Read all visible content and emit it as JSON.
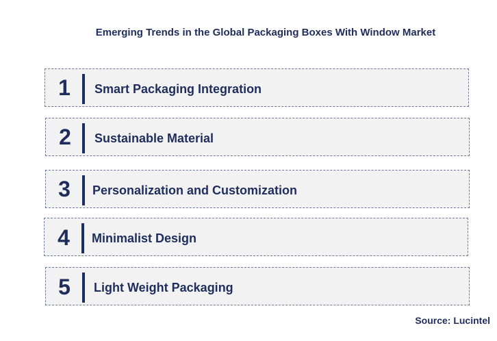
{
  "title": "Emerging Trends in the Global Packaging Boxes With Window Market",
  "items": [
    {
      "number": "1",
      "label": "Smart Packaging Integration"
    },
    {
      "number": "2",
      "label": "Sustainable Material"
    },
    {
      "number": "3",
      "label": "Personalization and Customization"
    },
    {
      "number": "4",
      "label": "Minimalist Design"
    },
    {
      "number": "5",
      "label": "Light Weight Packaging"
    }
  ],
  "source": "Source: Lucintel",
  "colors": {
    "text": "#1f2d5c",
    "box_bg": "#f2f2f2",
    "border": "#6a7a96"
  }
}
